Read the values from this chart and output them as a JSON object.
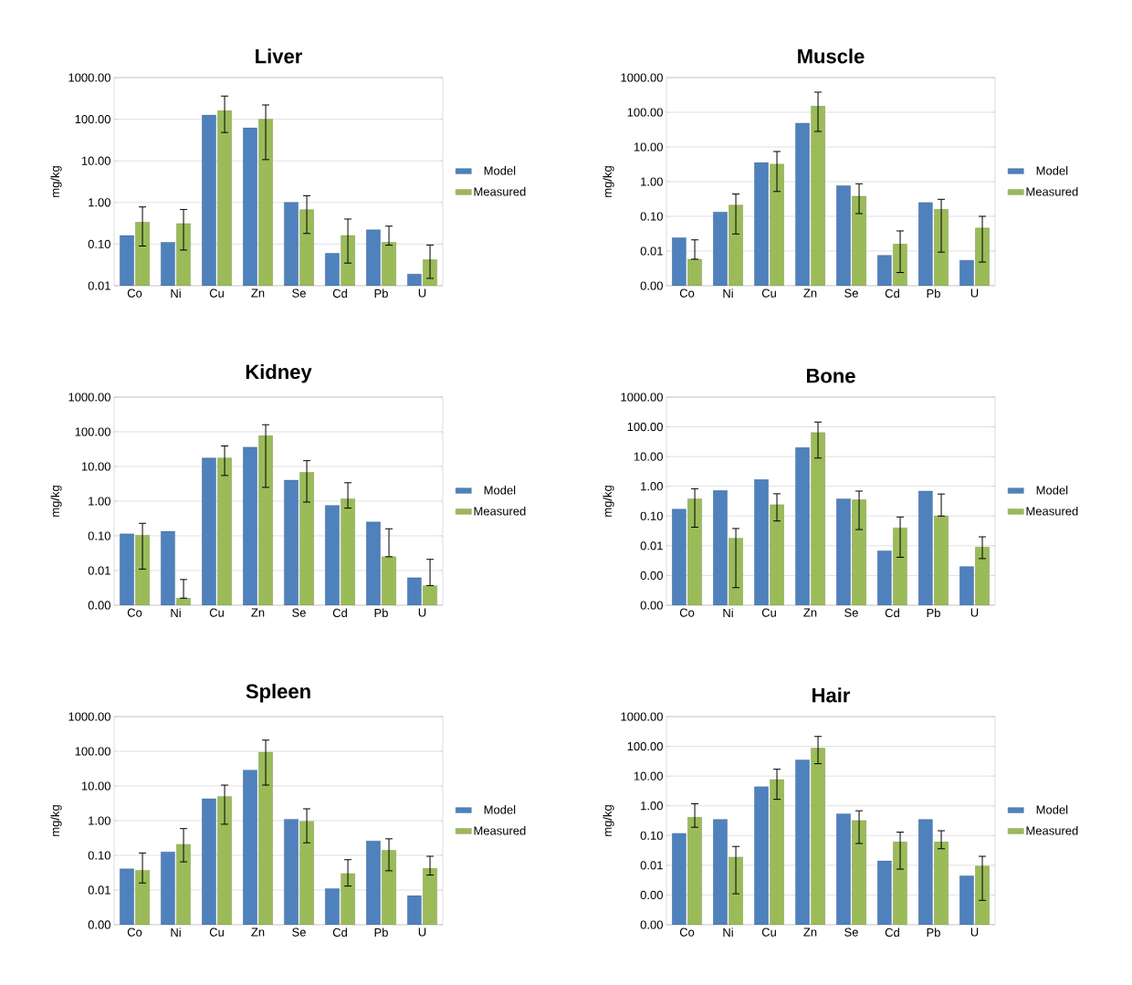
{
  "chart_data": [
    {
      "type": "bar",
      "title": "Liver",
      "ylabel": "mg/kg",
      "log": true,
      "grid": "y",
      "legend": "right",
      "categories": [
        "Co",
        "Ni",
        "Cu",
        "Zn",
        "Se",
        "Cd",
        "Pb",
        "U"
      ],
      "ylim": [
        0.01,
        1000
      ],
      "yticks": [
        {
          "value": 0.01,
          "label": "0.01"
        },
        {
          "value": 0.1,
          "label": "0.10"
        },
        {
          "value": 1,
          "label": "1.00"
        },
        {
          "value": 10,
          "label": "10.00"
        },
        {
          "value": 100,
          "label": "100.00"
        },
        {
          "value": 1000,
          "label": "1000.00"
        }
      ],
      "series": [
        {
          "name": "Model",
          "color": "#4f81bd",
          "values": [
            0.16,
            0.11,
            126,
            62,
            1.0,
            0.06,
            0.22,
            0.019
          ]
        },
        {
          "name": "Measured",
          "color": "#9bbb59",
          "values": [
            0.34,
            0.31,
            160,
            100,
            0.67,
            0.16,
            0.11,
            0.042
          ],
          "errors": [
            [
              0.09,
              0.78
            ],
            [
              0.072,
              0.68
            ],
            [
              48,
              360
            ],
            [
              10.7,
              220
            ],
            [
              0.18,
              1.45
            ],
            [
              0.035,
              0.4
            ],
            [
              0.094,
              0.27
            ],
            [
              0.015,
              0.095
            ]
          ]
        }
      ]
    },
    {
      "type": "bar",
      "title": "Muscle",
      "ylabel": "mg/kg",
      "log": true,
      "grid": "y",
      "legend": "right",
      "categories": [
        "Co",
        "Ni",
        "Cu",
        "Zn",
        "Se",
        "Cd",
        "Pb",
        "U"
      ],
      "ylim": [
        0.001,
        1000
      ],
      "yticks": [
        {
          "value": 0.001,
          "label": "0.00"
        },
        {
          "value": 0.01,
          "label": "0.01"
        },
        {
          "value": 0.1,
          "label": "0.10"
        },
        {
          "value": 1,
          "label": "1.00"
        },
        {
          "value": 10,
          "label": "10.00"
        },
        {
          "value": 100,
          "label": "100.00"
        },
        {
          "value": 1000,
          "label": "1000.00"
        }
      ],
      "series": [
        {
          "name": "Model",
          "color": "#4f81bd",
          "values": [
            0.024,
            0.134,
            3.55,
            49,
            0.76,
            0.0075,
            0.25,
            0.0054
          ]
        },
        {
          "name": "Measured",
          "color": "#9bbb59",
          "values": [
            0.0058,
            0.21,
            3.2,
            150,
            0.38,
            0.016,
            0.16,
            0.046
          ],
          "errors": [
            [
              0.0058,
              0.021
            ],
            [
              0.031,
              0.44
            ],
            [
              0.52,
              7.4
            ],
            [
              28,
              380
            ],
            [
              0.12,
              0.87
            ],
            [
              0.0024,
              0.038
            ],
            [
              0.0093,
              0.31
            ],
            [
              0.0048,
              0.1
            ]
          ]
        }
      ]
    },
    {
      "type": "bar",
      "title": "Kidney",
      "ylabel": "mg/kg",
      "log": true,
      "grid": "y",
      "legend": "right",
      "categories": [
        "Co",
        "Ni",
        "Cu",
        "Zn",
        "Se",
        "Cd",
        "Pb",
        "U"
      ],
      "ylim": [
        0.001,
        1000
      ],
      "yticks": [
        {
          "value": 0.001,
          "label": "0.00"
        },
        {
          "value": 0.01,
          "label": "0.01"
        },
        {
          "value": 0.1,
          "label": "0.10"
        },
        {
          "value": 1,
          "label": "1.00"
        },
        {
          "value": 10,
          "label": "10.00"
        },
        {
          "value": 100,
          "label": "100.00"
        },
        {
          "value": 1000,
          "label": "1000.00"
        }
      ],
      "series": [
        {
          "name": "Model",
          "color": "#4f81bd",
          "values": [
            0.115,
            0.135,
            17.6,
            36,
            4.0,
            0.75,
            0.25,
            0.0062
          ]
        },
        {
          "name": "Measured",
          "color": "#9bbb59",
          "values": [
            0.104,
            0.0016,
            17.6,
            77,
            6.7,
            1.17,
            0.025,
            0.0037
          ],
          "errors": [
            [
              0.011,
              0.23
            ],
            [
              0.0016,
              0.0055
            ],
            [
              5.5,
              39
            ],
            [
              2.5,
              160
            ],
            [
              0.94,
              14.7
            ],
            [
              0.63,
              3.4
            ],
            [
              0.025,
              0.16
            ],
            [
              0.0037,
              0.021
            ]
          ]
        }
      ]
    },
    {
      "type": "bar",
      "title": "Bone",
      "ylabel": "mg/kg",
      "log": true,
      "grid": "y",
      "legend": "right",
      "categories": [
        "Co",
        "Ni",
        "Cu",
        "Zn",
        "Se",
        "Cd",
        "Pb",
        "U"
      ],
      "ylim": [
        0.0001,
        1000
      ],
      "yticks": [
        {
          "value": 0.0001,
          "label": "0.00"
        },
        {
          "value": 0.001,
          "label": "0.00"
        },
        {
          "value": 0.01,
          "label": "0.01"
        },
        {
          "value": 0.1,
          "label": "0.10"
        },
        {
          "value": 1,
          "label": "1.00"
        },
        {
          "value": 10,
          "label": "10.00"
        },
        {
          "value": 100,
          "label": "100.00"
        },
        {
          "value": 1000,
          "label": "1000.00"
        }
      ],
      "series": [
        {
          "name": "Model",
          "color": "#4f81bd",
          "values": [
            0.17,
            0.72,
            1.7,
            20,
            0.38,
            0.0068,
            0.69,
            0.002
          ]
        },
        {
          "name": "Measured",
          "color": "#9bbb59",
          "values": [
            0.38,
            0.018,
            0.24,
            64,
            0.35,
            0.04,
            0.1,
            0.009
          ],
          "errors": [
            [
              0.042,
              0.83
            ],
            [
              0.00039,
              0.038
            ],
            [
              0.068,
              0.56
            ],
            [
              8.9,
              145
            ],
            [
              0.035,
              0.69
            ],
            [
              0.0041,
              0.093
            ],
            [
              0.1,
              0.55
            ],
            [
              0.0037,
              0.02
            ]
          ]
        }
      ]
    },
    {
      "type": "bar",
      "title": "Spleen",
      "ylabel": "mg/kg",
      "log": true,
      "grid": "y",
      "legend": "right",
      "categories": [
        "Co",
        "Ni",
        "Cu",
        "Zn",
        "Se",
        "Cd",
        "Pb",
        "U"
      ],
      "ylim": [
        0.001,
        1000
      ],
      "yticks": [
        {
          "value": 0.001,
          "label": "0.00"
        },
        {
          "value": 0.01,
          "label": "0.01"
        },
        {
          "value": 0.1,
          "label": "0.10"
        },
        {
          "value": 1,
          "label": "1.00"
        },
        {
          "value": 10,
          "label": "10.00"
        },
        {
          "value": 100,
          "label": "100.00"
        },
        {
          "value": 1000,
          "label": "1000.00"
        }
      ],
      "series": [
        {
          "name": "Model",
          "color": "#4f81bd",
          "values": [
            0.041,
            0.126,
            4.3,
            29,
            1.1,
            0.011,
            0.26,
            0.0069
          ]
        },
        {
          "name": "Measured",
          "color": "#9bbb59",
          "values": [
            0.037,
            0.21,
            5,
            94,
            0.96,
            0.03,
            0.14,
            0.042
          ],
          "errors": [
            [
              0.016,
              0.117
            ],
            [
              0.065,
              0.59
            ],
            [
              0.79,
              10.6
            ],
            [
              10.6,
              210
            ],
            [
              0.23,
              2.2
            ],
            [
              0.013,
              0.075
            ],
            [
              0.036,
              0.3
            ],
            [
              0.027,
              0.094
            ]
          ]
        }
      ]
    },
    {
      "type": "bar",
      "title": "Hair",
      "ylabel": "mg/kg",
      "log": true,
      "grid": "y",
      "legend": "right",
      "categories": [
        "Co",
        "Ni",
        "Cu",
        "Zn",
        "Se",
        "Cd",
        "Pb",
        "U"
      ],
      "ylim": [
        0.0001,
        1000
      ],
      "yticks": [
        {
          "value": 0.0001,
          "label": "0.00"
        },
        {
          "value": 0.001,
          "label": "0.00"
        },
        {
          "value": 0.01,
          "label": "0.01"
        },
        {
          "value": 0.1,
          "label": "0.10"
        },
        {
          "value": 1,
          "label": "1.00"
        },
        {
          "value": 10,
          "label": "10.00"
        },
        {
          "value": 100,
          "label": "100.00"
        },
        {
          "value": 1000,
          "label": "1000.00"
        }
      ],
      "series": [
        {
          "name": "Model",
          "color": "#4f81bd",
          "values": [
            0.12,
            0.35,
            4.4,
            35,
            0.54,
            0.014,
            0.35,
            0.0044
          ]
        },
        {
          "name": "Measured",
          "color": "#9bbb59",
          "values": [
            0.41,
            0.019,
            7.6,
            87,
            0.32,
            0.061,
            0.061,
            0.0094
          ],
          "errors": [
            [
              0.19,
              1.17
            ],
            [
              0.0011,
              0.043
            ],
            [
              1.65,
              17
            ],
            [
              26,
              215
            ],
            [
              0.054,
              0.68
            ],
            [
              0.0074,
              0.13
            ],
            [
              0.036,
              0.145
            ],
            [
              0.00066,
              0.02
            ]
          ]
        }
      ]
    }
  ]
}
